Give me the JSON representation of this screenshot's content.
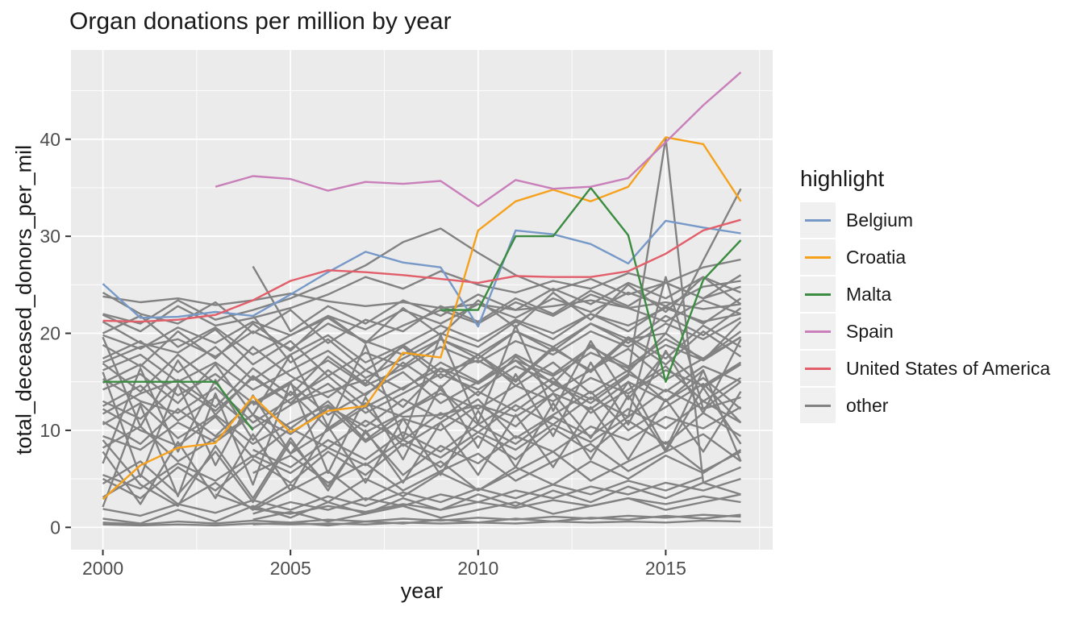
{
  "title": "Organ donations per million by year",
  "axes": {
    "x_label": "year",
    "y_label": "total_deceased_donors_per_mil"
  },
  "legend": {
    "title": "highlight",
    "entries": [
      {
        "label": "Belgium",
        "color": "#7799C8"
      },
      {
        "label": "Croatia",
        "color": "#F6A11C"
      },
      {
        "label": "Malta",
        "color": "#3B8C40"
      },
      {
        "label": "Spain",
        "color": "#C97FB9"
      },
      {
        "label": "United States of America",
        "color": "#E25E6A"
      },
      {
        "label": "other",
        "color": "#828282"
      }
    ]
  },
  "colors": {
    "panel": "#EBEBEB",
    "grid": "#FFFFFF",
    "tick": "#333333",
    "tick_label": "#4D4D4D",
    "text": "#1A1A1A",
    "legend_key_bg": "#F0F0F0"
  },
  "chart_data": {
    "type": "line",
    "title": "Organ donations per million by year",
    "xlabel": "year",
    "ylabel": "total_deceased_donors_per_mil",
    "x": [
      2000,
      2001,
      2002,
      2003,
      2004,
      2005,
      2006,
      2007,
      2008,
      2009,
      2010,
      2011,
      2012,
      2013,
      2014,
      2015,
      2016,
      2017
    ],
    "xlim": [
      1999.15,
      2017.85
    ],
    "ylim": [
      -2.3,
      49.2
    ],
    "x_ticks": [
      {
        "value": 2000,
        "label": "2000"
      },
      {
        "value": 2005,
        "label": "2005"
      },
      {
        "value": 2010,
        "label": "2010"
      },
      {
        "value": 2015,
        "label": "2015"
      }
    ],
    "y_ticks": [
      {
        "value": 0,
        "label": "0"
      },
      {
        "value": 10,
        "label": "10"
      },
      {
        "value": 20,
        "label": "20"
      },
      {
        "value": 30,
        "label": "30"
      },
      {
        "value": 40,
        "label": "40"
      }
    ],
    "grid": {
      "x_major": [
        2000,
        2005,
        2010,
        2015
      ],
      "x_minor": [
        2002.5,
        2007.5,
        2012.5,
        2017.5
      ],
      "y_major": [
        0,
        10,
        20,
        30,
        40
      ],
      "y_minor": [
        5,
        15,
        25,
        35,
        45
      ]
    },
    "legend_position": "right",
    "other_color": "#828282",
    "series": [
      {
        "name": "Belgium",
        "color": "#7799C8",
        "values": [
          25.1,
          21.6,
          21.7,
          22.2,
          21.8,
          24.0,
          26.3,
          28.4,
          27.3,
          26.8,
          20.7,
          30.6,
          30.2,
          29.2,
          27.2,
          31.6,
          30.9,
          30.3
        ]
      },
      {
        "name": "Croatia",
        "color": "#F6A11C",
        "values": [
          2.9,
          6.4,
          8.2,
          8.7,
          13.5,
          9.8,
          12.0,
          12.5,
          18.0,
          17.5,
          30.6,
          33.6,
          34.8,
          33.6,
          35.1,
          40.2,
          39.5,
          33.6
        ]
      },
      {
        "name": "Malta",
        "color": "#3B8C40",
        "values": [
          15.0,
          15.0,
          15.0,
          15.0,
          10.0,
          null,
          null,
          null,
          null,
          22.4,
          22.4,
          30.0,
          30.0,
          35.0,
          30.1,
          15.0,
          25.5,
          29.6
        ]
      },
      {
        "name": "Spain",
        "color": "#C97FB9",
        "values": [
          null,
          null,
          null,
          35.1,
          36.2,
          35.9,
          34.7,
          35.6,
          35.4,
          35.7,
          33.1,
          35.8,
          34.9,
          35.1,
          36.0,
          39.7,
          43.5,
          46.9
        ]
      },
      {
        "name": "United States of America",
        "color": "#E25E6A",
        "values": [
          21.3,
          21.2,
          21.4,
          21.9,
          23.4,
          25.4,
          26.5,
          26.3,
          26.0,
          25.6,
          25.2,
          25.9,
          25.8,
          25.8,
          26.4,
          28.2,
          30.6,
          31.7
        ]
      }
    ],
    "other_series": [
      [
        23.8,
        23.2,
        23.6,
        22.9,
        23.4,
        24.1,
        23.3,
        22.8,
        23.2,
        22.6,
        23.0,
        22.4,
        22.8,
        23.4,
        22.6,
        23.2,
        22.5,
        23.0
      ],
      [
        19.8,
        18.4,
        20.6,
        19.0,
        21.2,
        19.8,
        21.8,
        20.4,
        22.4,
        21.0,
        23.0,
        21.6,
        23.6,
        22.2,
        24.2,
        22.8,
        24.8,
        25.4
      ],
      [
        21.9,
        20.2,
        22.8,
        20.8,
        21.6,
        22.6,
        24.0,
        25.8,
        24.6,
        26.4,
        25.0,
        24.2,
        25.4,
        24.6,
        26.2,
        25.2,
        26.8,
        27.6
      ],
      [
        17.4,
        19.2,
        16.0,
        18.6,
        15.2,
        17.8,
        19.8,
        17.0,
        18.8,
        20.8,
        19.2,
        21.4,
        20.0,
        22.0,
        20.8,
        22.6,
        21.2,
        22.0
      ],
      [
        14.9,
        16.8,
        13.6,
        15.8,
        12.8,
        15.0,
        17.2,
        14.6,
        16.4,
        18.6,
        17.0,
        19.2,
        17.8,
        20.2,
        18.6,
        21.0,
        19.4,
        21.6
      ],
      [
        16.9,
        14.0,
        17.8,
        14.8,
        18.6,
        15.6,
        13.4,
        16.2,
        14.2,
        17.0,
        15.0,
        17.8,
        15.8,
        18.6,
        16.6,
        19.4,
        17.4,
        20.2
      ],
      [
        13.0,
        11.2,
        14.6,
        12.0,
        15.4,
        12.8,
        16.2,
        13.6,
        17.0,
        14.4,
        17.8,
        15.2,
        18.6,
        16.0,
        19.4,
        16.8,
        20.2,
        17.6
      ],
      [
        10.6,
        12.8,
        9.2,
        11.6,
        8.6,
        10.8,
        12.6,
        9.8,
        11.8,
        13.8,
        12.2,
        14.6,
        13.0,
        15.4,
        13.8,
        16.2,
        14.6,
        17.0
      ],
      [
        12.5,
        14.6,
        11.0,
        13.4,
        10.2,
        12.6,
        14.8,
        11.8,
        13.8,
        15.8,
        14.2,
        16.6,
        15.0,
        13.2,
        15.8,
        14.0,
        16.6,
        15.0
      ],
      [
        15.3,
        13.0,
        11.8,
        14.4,
        10.8,
        13.2,
        15.6,
        12.4,
        14.4,
        16.4,
        14.8,
        17.2,
        15.6,
        18.0,
        16.4,
        18.8,
        17.2,
        19.6
      ],
      [
        22.0,
        21.0,
        23.4,
        21.4,
        22.4,
        23.6,
        25.2,
        27.0,
        29.4,
        30.8,
        28.3,
        26.0,
        24.4,
        25.6,
        24.0,
        25.2,
        23.6,
        24.8
      ],
      [
        9.4,
        8.0,
        10.8,
        8.8,
        11.6,
        9.6,
        12.4,
        10.4,
        13.2,
        11.2,
        14.0,
        12.0,
        14.8,
        12.8,
        15.6,
        40.1,
        4.6,
        6.2
      ],
      [
        16.2,
        17.8,
        15.0,
        17.0,
        14.2,
        16.2,
        18.2,
        15.4,
        17.4,
        19.4,
        17.8,
        20.2,
        18.6,
        21.0,
        19.4,
        20.0,
        27.5,
        34.9
      ],
      [
        5.4,
        4.0,
        6.6,
        4.8,
        7.4,
        5.6,
        8.2,
        6.4,
        9.0,
        7.2,
        9.8,
        8.0,
        10.6,
        8.8,
        11.4,
        25.8,
        12.2,
        13.4
      ],
      [
        20.0,
        21.8,
        18.6,
        20.6,
        17.8,
        19.8,
        21.6,
        19.0,
        20.8,
        22.4,
        21.0,
        23.2,
        21.8,
        24.0,
        22.6,
        21.2,
        23.4,
        22.0
      ],
      [
        null,
        null,
        null,
        null,
        26.9,
        20.2,
        22.8,
        21.0,
        23.4,
        21.8,
        24.0,
        22.4,
        24.6,
        23.0,
        25.2,
        23.6,
        25.8,
        24.2
      ],
      [
        null,
        null,
        null,
        null,
        21.8,
        17.0,
        19.4,
        16.2,
        18.6,
        15.4,
        17.8,
        14.6,
        17.0,
        13.8,
        16.2,
        13.0,
        15.4,
        12.2
      ],
      [
        null,
        null,
        null,
        null,
        8.0,
        6.2,
        9.0,
        7.0,
        9.8,
        7.8,
        10.6,
        8.6,
        11.4,
        9.4,
        12.2,
        10.2,
        13.0,
        10.8
      ],
      [
        null,
        null,
        null,
        null,
        5.6,
        7.4,
        4.6,
        6.6,
        3.8,
        5.8,
        7.6,
        4.8,
        6.8,
        8.6,
        5.8,
        7.8,
        9.6,
        6.8
      ],
      [
        null,
        null,
        null,
        3.4,
        2.0,
        4.4,
        2.6,
        5.0,
        3.2,
        5.6,
        3.8,
        6.2,
        4.4,
        6.8,
        5.0,
        7.4,
        5.6,
        8.0
      ],
      [
        null,
        null,
        null,
        null,
        12.6,
        14.8,
        11.6,
        13.8,
        16.0,
        12.8,
        15.0,
        17.2,
        14.0,
        16.2,
        18.4,
        15.2,
        17.4,
        19.6
      ],
      [
        0.5,
        0.3,
        0.6,
        0.4,
        0.7,
        0.5,
        0.8,
        0.6,
        0.9,
        0.7,
        1.0,
        0.8,
        1.1,
        0.9,
        1.2,
        1.0,
        1.3,
        1.1
      ],
      [
        null,
        null,
        null,
        null,
        0.3,
        0.5,
        0.2,
        0.6,
        0.4,
        0.8,
        0.5,
        0.9,
        0.6,
        1.0,
        0.8,
        1.2,
        0.9,
        1.3
      ],
      [
        1.9,
        1.2,
        2.4,
        1.5,
        2.8,
        1.8,
        3.2,
        2.2,
        3.6,
        2.6,
        4.0,
        3.0,
        4.4,
        3.4,
        4.8,
        3.8,
        5.2,
        null
      ],
      [
        null,
        null,
        null,
        null,
        1.4,
        2.6,
        1.8,
        3.0,
        2.2,
        3.4,
        2.6,
        3.8,
        3.0,
        4.2,
        3.4,
        4.6,
        3.8,
        5.0
      ],
      [
        0.9,
        0.4,
        1.8,
        0.6,
        2.2,
        1.0,
        2.6,
        1.4,
        3.0,
        1.8,
        3.4,
        2.2,
        3.8,
        2.6,
        4.2,
        3.0,
        4.6,
        3.4
      ],
      [
        null,
        null,
        null,
        null,
        0.8,
        1.6,
        0.6,
        1.4,
        2.2,
        1.0,
        1.8,
        2.6,
        1.4,
        2.2,
        3.0,
        1.8,
        2.6,
        3.4
      ],
      [
        0.3,
        0.2,
        0.3,
        0.2,
        0.4,
        0.3,
        0.4,
        0.3,
        0.5,
        0.4,
        0.5,
        0.4,
        0.6,
        0.5,
        0.6,
        0.5,
        0.7,
        0.6
      ],
      [
        7.8,
        2.4,
        8.8,
        3.0,
        9.6,
        3.8,
        10.4,
        4.6,
        11.2,
        5.4,
        12.0,
        6.2,
        12.8,
        7.0,
        13.6,
        7.8,
        14.4,
        8.6
      ],
      [
        2.1,
        12.6,
        3.2,
        13.8,
        4.4,
        15.0,
        5.6,
        13.4,
        7.0,
        14.6,
        8.2,
        15.8,
        9.4,
        17.0,
        10.6,
        18.2,
        11.8,
        19.4
      ],
      [
        16.0,
        5.2,
        14.8,
        6.4,
        13.6,
        7.6,
        12.4,
        8.8,
        11.2,
        10.0,
        12.6,
        11.4,
        13.8,
        12.2,
        15.0,
        13.0,
        16.2,
        null
      ],
      [
        10.9,
        8.6,
        12.2,
        9.4,
        13.0,
        10.2,
        8.2,
        11.0,
        9.0,
        11.8,
        9.8,
        12.6,
        10.6,
        13.4,
        11.4,
        14.2,
        12.2,
        15.0
      ],
      [
        19.6,
        10.4,
        17.2,
        11.6,
        15.6,
        12.8,
        14.0,
        15.2,
        12.4,
        16.4,
        13.6,
        17.6,
        14.8,
        18.8,
        16.0,
        20.0,
        17.2,
        21.2
      ],
      [
        6.6,
        16.4,
        7.8,
        15.2,
        9.0,
        14.0,
        10.2,
        12.8,
        11.4,
        11.6,
        12.6,
        10.4,
        13.8,
        9.2,
        15.0,
        8.0,
        16.2,
        6.8
      ],
      [
        14.2,
        15.8,
        12.8,
        16.8,
        11.6,
        17.8,
        10.4,
        18.8,
        9.2,
        19.8,
        10.8,
        20.8,
        12.0,
        19.2,
        13.2,
        18.0,
        14.4,
        16.8
      ],
      [
        18.8,
        16.6,
        20.2,
        17.4,
        21.0,
        18.2,
        21.8,
        19.0,
        22.6,
        19.8,
        23.4,
        20.6,
        24.2,
        21.4,
        25.0,
        22.2,
        25.8,
        23.0
      ],
      [
        12.2,
        10.0,
        8.4,
        11.4,
        7.2,
        10.2,
        13.0,
        9.0,
        11.8,
        14.2,
        10.6,
        13.0,
        15.4,
        11.8,
        14.2,
        16.6,
        13.0,
        15.4
      ],
      [
        4.5,
        6.8,
        3.4,
        7.8,
        2.6,
        8.8,
        4.2,
        9.8,
        5.4,
        8.4,
        6.6,
        9.4,
        7.8,
        10.4,
        9.0,
        11.4,
        10.2,
        12.4
      ],
      [
        9.0,
        4.4,
        2.2,
        8.4,
        3.0,
        9.2,
        3.8,
        10.0,
        4.6,
        10.8,
        5.4,
        11.6,
        6.2,
        12.4,
        7.0,
        13.2,
        7.8,
        14.0
      ],
      [
        21.2,
        19.0,
        18.0,
        20.4,
        16.8,
        19.2,
        15.6,
        18.0,
        16.6,
        19.4,
        17.4,
        20.2,
        18.2,
        21.0,
        19.0,
        21.8,
        19.8,
        22.6
      ],
      [
        11.7,
        13.8,
        15.2,
        12.4,
        16.4,
        13.6,
        17.6,
        14.8,
        18.8,
        16.0,
        17.2,
        15.0,
        18.4,
        16.2,
        19.6,
        17.4,
        20.8,
        18.6
      ],
      [
        8.2,
        10.4,
        6.8,
        9.2,
        11.6,
        7.6,
        10.0,
        12.4,
        8.4,
        10.8,
        13.2,
        9.2,
        11.6,
        14.0,
        10.0,
        12.4,
        14.8,
        10.8
      ],
      [
        5.0,
        3.0,
        6.2,
        3.8,
        7.0,
        4.6,
        7.8,
        5.4,
        8.6,
        6.2,
        9.4,
        7.0,
        10.2,
        7.8,
        11.0,
        8.6,
        11.8,
        9.4
      ],
      [
        24.2,
        22.0,
        21.0,
        23.2,
        20.0,
        22.4,
        19.0,
        21.4,
        20.2,
        22.8,
        21.2,
        23.6,
        22.0,
        24.4,
        22.8,
        25.2,
        23.6,
        26.0
      ],
      [
        3.1,
        5.4,
        2.4,
        4.6,
        1.8,
        3.8,
        5.8,
        2.8,
        4.8,
        6.8,
        3.8,
        5.8,
        7.8,
        4.8,
        6.8,
        8.8,
        5.8,
        7.8
      ],
      [
        17.0,
        18.6,
        19.4,
        17.6,
        20.2,
        18.4,
        21.0,
        19.2,
        17.8,
        20.0,
        18.6,
        21.2,
        19.4,
        22.0,
        20.2,
        22.8,
        21.0,
        23.6
      ],
      [
        null,
        null,
        null,
        null,
        1.9,
        1.4,
        2.2,
        1.6,
        2.4,
        1.8,
        2.6,
        2.0,
        2.8,
        2.2,
        3.0,
        2.4,
        3.2,
        2.6
      ]
    ]
  }
}
